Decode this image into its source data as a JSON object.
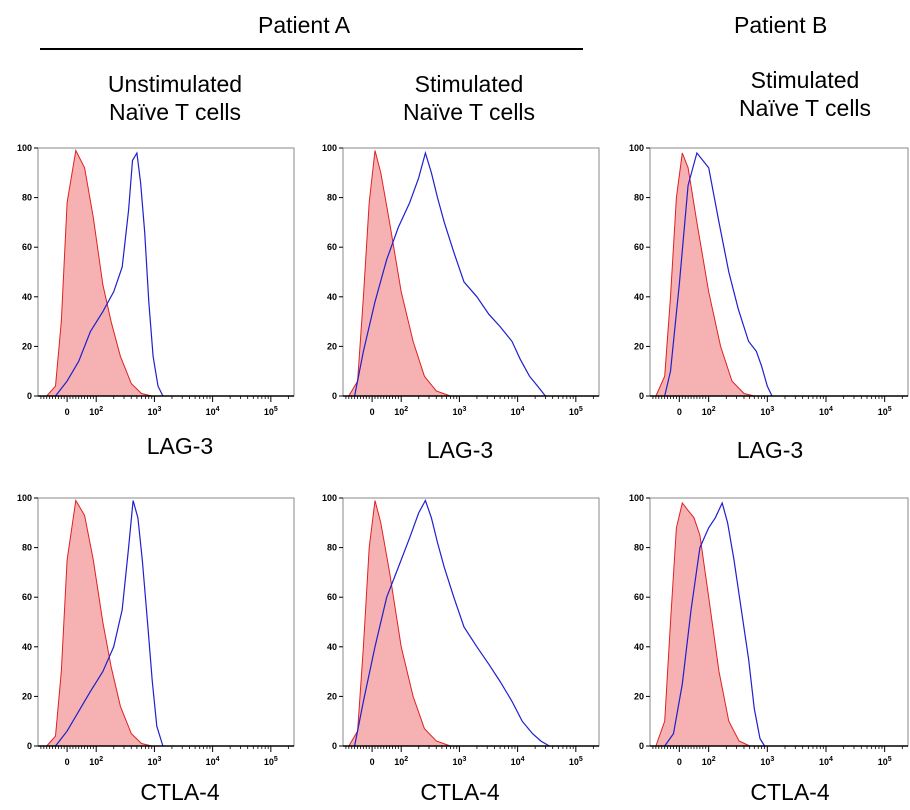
{
  "figure": {
    "patient_a_label": "Patient A",
    "patient_b_label": "Patient B",
    "columns": [
      {
        "line1": "Unstimulated",
        "line2": "Naïve T cells"
      },
      {
        "line1": "Stimulated",
        "line2": "Naïve T cells"
      },
      {
        "line1": "Stimulated",
        "line2": "Naïve T cells"
      }
    ],
    "row_markers": [
      "LAG-3",
      "CTLA-4"
    ]
  },
  "colors": {
    "isotype_fill": "#f4a5a5",
    "isotype_line": "#e02020",
    "marker_line": "#1f1fd0",
    "axis": "#000000"
  },
  "chart_data": [
    {
      "type": "area",
      "patient": "Patient A",
      "condition": "Unstimulated Naïve T cells",
      "xlabel": "LAG-3",
      "xscale": "biexponential",
      "ylim": [
        0,
        100
      ],
      "yticks": [
        "0",
        "20",
        "40",
        "60",
        "80",
        "100"
      ],
      "xticks": [
        "0",
        "10^2",
        "10^3",
        "10^4",
        "10^5"
      ],
      "series": [
        {
          "role": "isotype",
          "filled": true,
          "points": [
            [
              -70,
              0
            ],
            [
              -40,
              4
            ],
            [
              -20,
              30
            ],
            [
              0,
              78
            ],
            [
              30,
              99
            ],
            [
              60,
              92
            ],
            [
              90,
              72
            ],
            [
              130,
              45
            ],
            [
              180,
              30
            ],
            [
              260,
              16
            ],
            [
              400,
              5
            ],
            [
              600,
              1
            ],
            [
              900,
              0
            ]
          ]
        },
        {
          "role": "marker",
          "filled": false,
          "points": [
            [
              -40,
              0
            ],
            [
              0,
              6
            ],
            [
              40,
              14
            ],
            [
              80,
              26
            ],
            [
              130,
              34
            ],
            [
              200,
              42
            ],
            [
              280,
              52
            ],
            [
              360,
              75
            ],
            [
              420,
              95
            ],
            [
              500,
              98
            ],
            [
              580,
              86
            ],
            [
              680,
              66
            ],
            [
              800,
              38
            ],
            [
              950,
              16
            ],
            [
              1150,
              4
            ],
            [
              1400,
              0
            ]
          ]
        }
      ]
    },
    {
      "type": "area",
      "patient": "Patient A",
      "condition": "Stimulated Naïve T cells",
      "xlabel": "LAG-3",
      "xscale": "biexponential",
      "ylim": [
        0,
        100
      ],
      "yticks": [
        "0",
        "20",
        "40",
        "60",
        "80",
        "100"
      ],
      "xticks": [
        "0",
        "10^2",
        "10^3",
        "10^4",
        "10^5"
      ],
      "series": [
        {
          "role": "isotype",
          "filled": true,
          "points": [
            [
              -80,
              0
            ],
            [
              -50,
              6
            ],
            [
              -30,
              40
            ],
            [
              -10,
              78
            ],
            [
              10,
              99
            ],
            [
              30,
              90
            ],
            [
              60,
              70
            ],
            [
              100,
              42
            ],
            [
              160,
              22
            ],
            [
              250,
              8
            ],
            [
              400,
              2
            ],
            [
              700,
              0
            ]
          ]
        },
        {
          "role": "marker",
          "filled": false,
          "points": [
            [
              -60,
              0
            ],
            [
              -30,
              18
            ],
            [
              10,
              38
            ],
            [
              50,
              55
            ],
            [
              90,
              68
            ],
            [
              140,
              78
            ],
            [
              200,
              88
            ],
            [
              260,
              98
            ],
            [
              330,
              90
            ],
            [
              420,
              80
            ],
            [
              550,
              70
            ],
            [
              800,
              58
            ],
            [
              1200,
              46
            ],
            [
              2000,
              40
            ],
            [
              3200,
              33
            ],
            [
              5000,
              28
            ],
            [
              8000,
              22
            ],
            [
              11000,
              15
            ],
            [
              16000,
              8
            ],
            [
              22000,
              4
            ],
            [
              30000,
              0
            ]
          ]
        }
      ]
    },
    {
      "type": "area",
      "patient": "Patient B",
      "condition": "Stimulated Naïve T cells",
      "xlabel": "LAG-3",
      "xscale": "biexponential",
      "ylim": [
        0,
        100
      ],
      "yticks": [
        "0",
        "20",
        "40",
        "60",
        "80",
        "100"
      ],
      "xticks": [
        "0",
        "10^2",
        "10^3",
        "10^4",
        "10^5"
      ],
      "series": [
        {
          "role": "isotype",
          "filled": true,
          "points": [
            [
              -80,
              0
            ],
            [
              -50,
              8
            ],
            [
              -30,
              40
            ],
            [
              -10,
              80
            ],
            [
              10,
              98
            ],
            [
              30,
              92
            ],
            [
              60,
              70
            ],
            [
              100,
              42
            ],
            [
              160,
              20
            ],
            [
              250,
              6
            ],
            [
              400,
              1
            ],
            [
              600,
              0
            ]
          ]
        },
        {
          "role": "marker",
          "filled": false,
          "points": [
            [
              -50,
              0
            ],
            [
              -30,
              10
            ],
            [
              0,
              45
            ],
            [
              30,
              85
            ],
            [
              60,
              98
            ],
            [
              100,
              92
            ],
            [
              150,
              70
            ],
            [
              220,
              50
            ],
            [
              320,
              35
            ],
            [
              480,
              22
            ],
            [
              650,
              18
            ],
            [
              800,
              12
            ],
            [
              1000,
              4
            ],
            [
              1200,
              0
            ]
          ]
        }
      ]
    },
    {
      "type": "area",
      "patient": "Patient A",
      "condition": "Unstimulated Naïve T cells",
      "xlabel": "CTLA-4",
      "xscale": "biexponential",
      "ylim": [
        0,
        100
      ],
      "yticks": [
        "0",
        "20",
        "40",
        "60",
        "80",
        "100"
      ],
      "xticks": [
        "0",
        "10^2",
        "10^3",
        "10^4",
        "10^5"
      ],
      "series": [
        {
          "role": "isotype",
          "filled": true,
          "points": [
            [
              -70,
              0
            ],
            [
              -40,
              4
            ],
            [
              -20,
              30
            ],
            [
              0,
              75
            ],
            [
              30,
              99
            ],
            [
              60,
              93
            ],
            [
              90,
              75
            ],
            [
              130,
              50
            ],
            [
              180,
              32
            ],
            [
              260,
              16
            ],
            [
              400,
              5
            ],
            [
              600,
              1
            ],
            [
              900,
              0
            ]
          ]
        },
        {
          "role": "marker",
          "filled": false,
          "points": [
            [
              -40,
              0
            ],
            [
              0,
              6
            ],
            [
              40,
              14
            ],
            [
              80,
              22
            ],
            [
              130,
              30
            ],
            [
              200,
              40
            ],
            [
              280,
              55
            ],
            [
              360,
              80
            ],
            [
              430,
              99
            ],
            [
              520,
              92
            ],
            [
              620,
              75
            ],
            [
              760,
              50
            ],
            [
              920,
              26
            ],
            [
              1100,
              8
            ],
            [
              1400,
              0
            ]
          ]
        }
      ]
    },
    {
      "type": "area",
      "patient": "Patient A",
      "condition": "Stimulated Naïve T cells",
      "xlabel": "CTLA-4",
      "xscale": "biexponential",
      "ylim": [
        0,
        100
      ],
      "yticks": [
        "0",
        "20",
        "40",
        "60",
        "80",
        "100"
      ],
      "xticks": [
        "0",
        "10^2",
        "10^3",
        "10^4",
        "10^5"
      ],
      "series": [
        {
          "role": "isotype",
          "filled": true,
          "points": [
            [
              -80,
              0
            ],
            [
              -50,
              6
            ],
            [
              -30,
              40
            ],
            [
              -10,
              80
            ],
            [
              10,
              99
            ],
            [
              30,
              90
            ],
            [
              60,
              70
            ],
            [
              100,
              40
            ],
            [
              160,
              20
            ],
            [
              250,
              7
            ],
            [
              400,
              2
            ],
            [
              700,
              0
            ]
          ]
        },
        {
          "role": "marker",
          "filled": false,
          "points": [
            [
              -60,
              0
            ],
            [
              -30,
              18
            ],
            [
              10,
              40
            ],
            [
              50,
              60
            ],
            [
              90,
              72
            ],
            [
              140,
              84
            ],
            [
              200,
              94
            ],
            [
              260,
              99
            ],
            [
              330,
              92
            ],
            [
              420,
              82
            ],
            [
              550,
              72
            ],
            [
              800,
              60
            ],
            [
              1200,
              48
            ],
            [
              2000,
              40
            ],
            [
              3200,
              33
            ],
            [
              5000,
              26
            ],
            [
              8000,
              18
            ],
            [
              12000,
              10
            ],
            [
              18000,
              5
            ],
            [
              25000,
              2
            ],
            [
              35000,
              0
            ]
          ]
        }
      ]
    },
    {
      "type": "area",
      "patient": "Patient B",
      "condition": "Stimulated Naïve T cells",
      "xlabel": "CTLA-4",
      "xscale": "biexponential",
      "ylim": [
        0,
        100
      ],
      "yticks": [
        "0",
        "20",
        "40",
        "60",
        "80",
        "100"
      ],
      "xticks": [
        "0",
        "10^2",
        "10^3",
        "10^4",
        "10^5"
      ],
      "series": [
        {
          "role": "isotype",
          "filled": true,
          "points": [
            [
              -80,
              0
            ],
            [
              -50,
              10
            ],
            [
              -30,
              50
            ],
            [
              -10,
              88
            ],
            [
              10,
              98
            ],
            [
              30,
              95
            ],
            [
              50,
              92
            ],
            [
              70,
              85
            ],
            [
              100,
              60
            ],
            [
              150,
              30
            ],
            [
              220,
              10
            ],
            [
              330,
              2
            ],
            [
              500,
              0
            ]
          ]
        },
        {
          "role": "marker",
          "filled": false,
          "points": [
            [
              -50,
              0
            ],
            [
              -20,
              5
            ],
            [
              10,
              25
            ],
            [
              40,
              55
            ],
            [
              70,
              80
            ],
            [
              100,
              88
            ],
            [
              130,
              92
            ],
            [
              170,
              98
            ],
            [
              210,
              90
            ],
            [
              270,
              75
            ],
            [
              360,
              55
            ],
            [
              480,
              35
            ],
            [
              600,
              15
            ],
            [
              750,
              3
            ],
            [
              900,
              0
            ]
          ]
        }
      ]
    }
  ]
}
